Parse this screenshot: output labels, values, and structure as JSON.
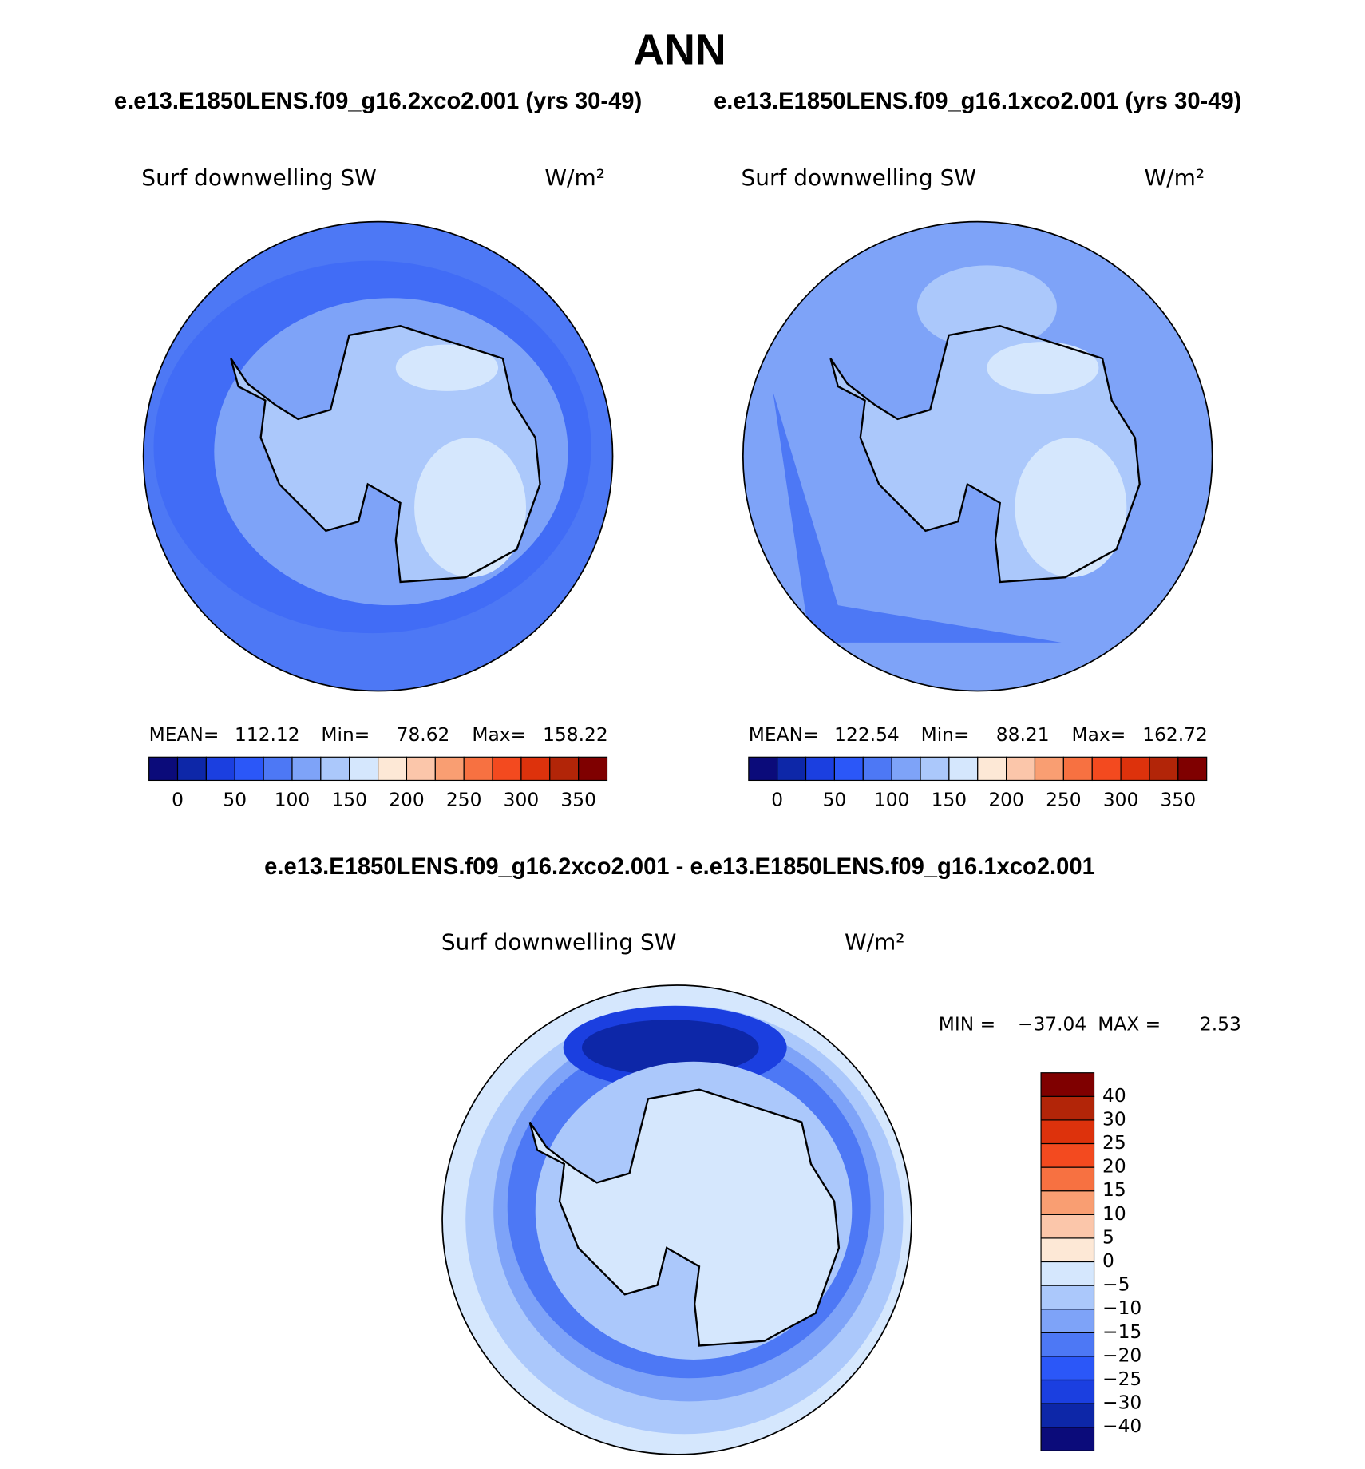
{
  "title": "ANN",
  "panels": [
    {
      "header": "e.e13.E1850LENS.f09_g16.2xco2.001 (yrs 30-49)",
      "variable": "Surf downwelling SW",
      "units": "W/m²",
      "stats": [
        {
          "label": "MEAN=",
          "value": 112.12
        },
        {
          "label": "Min=",
          "value": 78.62
        },
        {
          "label": "Max=",
          "value": 158.22
        }
      ]
    },
    {
      "header": "e.e13.E1850LENS.f09_g16.1xco2.001 (yrs 30-49)",
      "variable": "Surf downwelling SW",
      "units": "W/m²",
      "stats": [
        {
          "label": "MEAN=",
          "value": 122.54
        },
        {
          "label": "Min=",
          "value": 88.21
        },
        {
          "label": "Max=",
          "value": 162.72
        }
      ]
    }
  ],
  "colorbar": {
    "colors": [
      "#0b0b7a",
      "#0d27a8",
      "#1b3fe0",
      "#2b57f8",
      "#4d78f5",
      "#7ea3f8",
      "#abc8fb",
      "#d5e7fd",
      "#fde8d6",
      "#fbc6aa",
      "#f99e72",
      "#f77141",
      "#f34a1f",
      "#dd320c",
      "#b22508",
      "#7f0000"
    ],
    "ticks": [
      0,
      50,
      100,
      150,
      200,
      250,
      300,
      350
    ],
    "step": 25
  },
  "difference": {
    "header": "e.e13.E1850LENS.f09_g16.2xco2.001 - e.e13.E1850LENS.f09_g16.1xco2.001",
    "variable": "Surf downwelling SW",
    "units": "W/m²",
    "stats": [
      {
        "label": "MIN =",
        "value": {
          "value": -37.04,
          "label": "−37.04"
        }
      },
      {
        "label": "MAX =",
        "value": 2.53
      }
    ],
    "colorbar": {
      "colors": [
        "#0b0b7a",
        "#0d27a8",
        "#1b3fe0",
        "#2b57f8",
        "#4d78f5",
        "#7ea3f8",
        "#abc8fb",
        "#d5e7fd",
        "#fde8d6",
        "#fbc6aa",
        "#f99e72",
        "#f77141",
        "#f34a1f",
        "#dd320c",
        "#b22508",
        "#7f0000"
      ],
      "ticks": [
        {
          "value": -40,
          "label": "−40"
        },
        {
          "value": -30,
          "label": "−30"
        },
        {
          "value": -25,
          "label": "−25"
        },
        {
          "value": -20,
          "label": "−20"
        },
        {
          "value": -15,
          "label": "−15"
        },
        {
          "value": -10,
          "label": "−10"
        },
        {
          "value": -5,
          "label": "−5"
        },
        0,
        5,
        10,
        15,
        20,
        25,
        30,
        40
      ]
    }
  }
}
